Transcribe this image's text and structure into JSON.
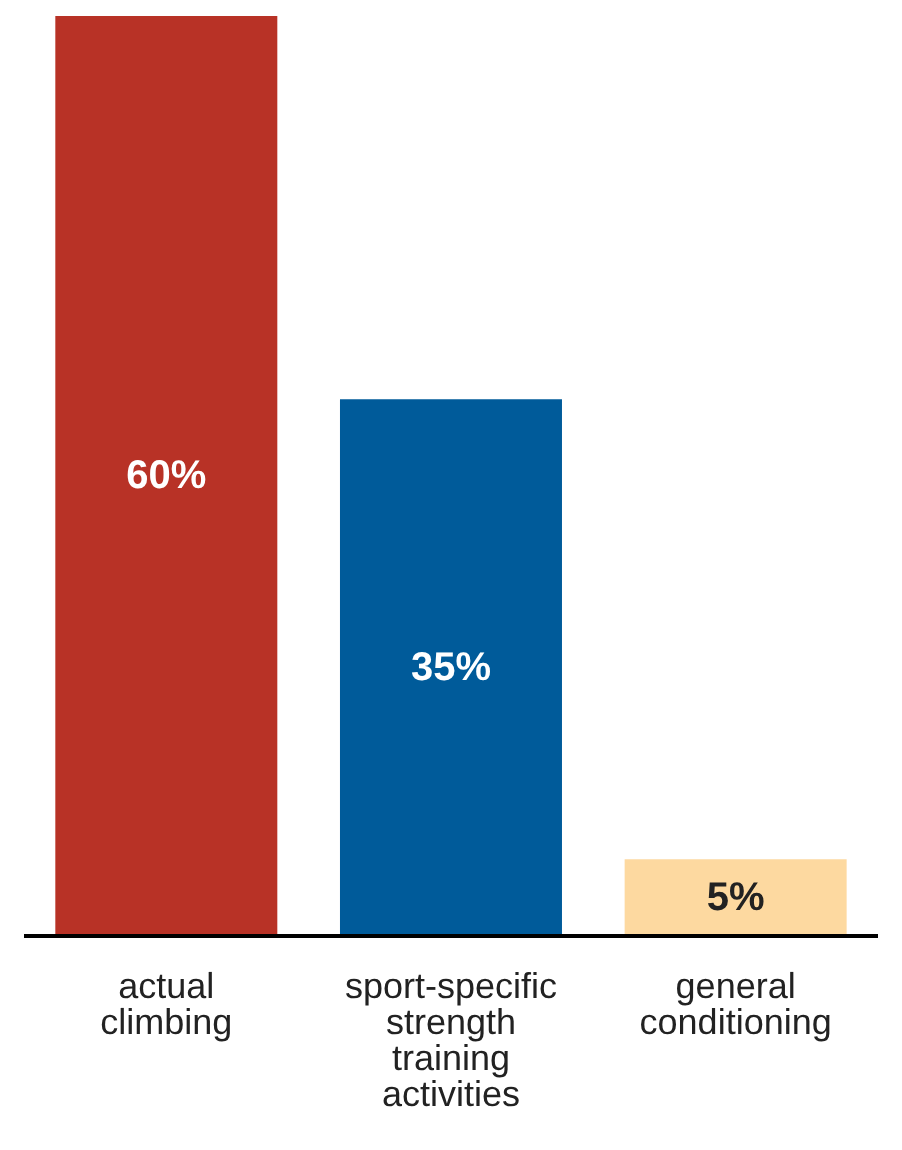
{
  "chart_data": {
    "type": "bar",
    "categories": [
      "actual climbing",
      "sport-specific strength training activities",
      "general conditioning"
    ],
    "values": [
      60,
      35,
      5
    ],
    "colors": [
      "#b83226",
      "#005b9a",
      "#fdd9a0"
    ],
    "value_labels": [
      "60%",
      "35%",
      "5%"
    ]
  }
}
